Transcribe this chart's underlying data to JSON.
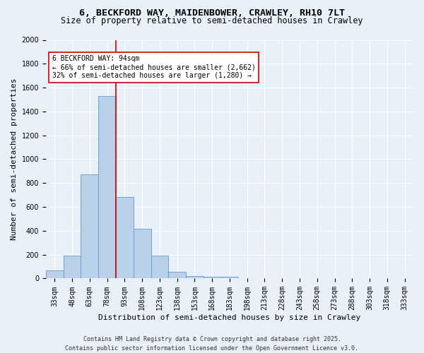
{
  "title_line1": "6, BECKFORD WAY, MAIDENBOWER, CRAWLEY, RH10 7LT",
  "title_line2": "Size of property relative to semi-detached houses in Crawley",
  "xlabel": "Distribution of semi-detached houses by size in Crawley",
  "ylabel": "Number of semi-detached properties",
  "bin_labels": [
    "33sqm",
    "48sqm",
    "63sqm",
    "78sqm",
    "93sqm",
    "108sqm",
    "123sqm",
    "138sqm",
    "153sqm",
    "168sqm",
    "183sqm",
    "198sqm",
    "213sqm",
    "228sqm",
    "243sqm",
    "258sqm",
    "273sqm",
    "288sqm",
    "303sqm",
    "318sqm",
    "333sqm"
  ],
  "bar_heights": [
    65,
    195,
    870,
    1530,
    685,
    415,
    195,
    55,
    20,
    12,
    12,
    0,
    0,
    0,
    0,
    0,
    0,
    0,
    0,
    0,
    0
  ],
  "bar_color": "#b8d0e8",
  "bar_edge_color": "#6699cc",
  "vline_x_index": 4,
  "vline_color": "#cc0000",
  "annotation_text": "6 BECKFORD WAY: 94sqm\n← 66% of semi-detached houses are smaller (2,662)\n32% of semi-detached houses are larger (1,280) →",
  "annotation_box_color": "white",
  "annotation_box_edge": "#cc0000",
  "ylim": [
    0,
    2000
  ],
  "yticks": [
    0,
    200,
    400,
    600,
    800,
    1000,
    1200,
    1400,
    1600,
    1800,
    2000
  ],
  "background_color": "#e8f0f8",
  "grid_color": "white",
  "footer_line1": "Contains HM Land Registry data © Crown copyright and database right 2025.",
  "footer_line2": "Contains public sector information licensed under the Open Government Licence v3.0.",
  "title_fontsize": 9.5,
  "subtitle_fontsize": 8.5,
  "axis_label_fontsize": 8,
  "tick_fontsize": 7,
  "annotation_fontsize": 7,
  "footer_fontsize": 6
}
